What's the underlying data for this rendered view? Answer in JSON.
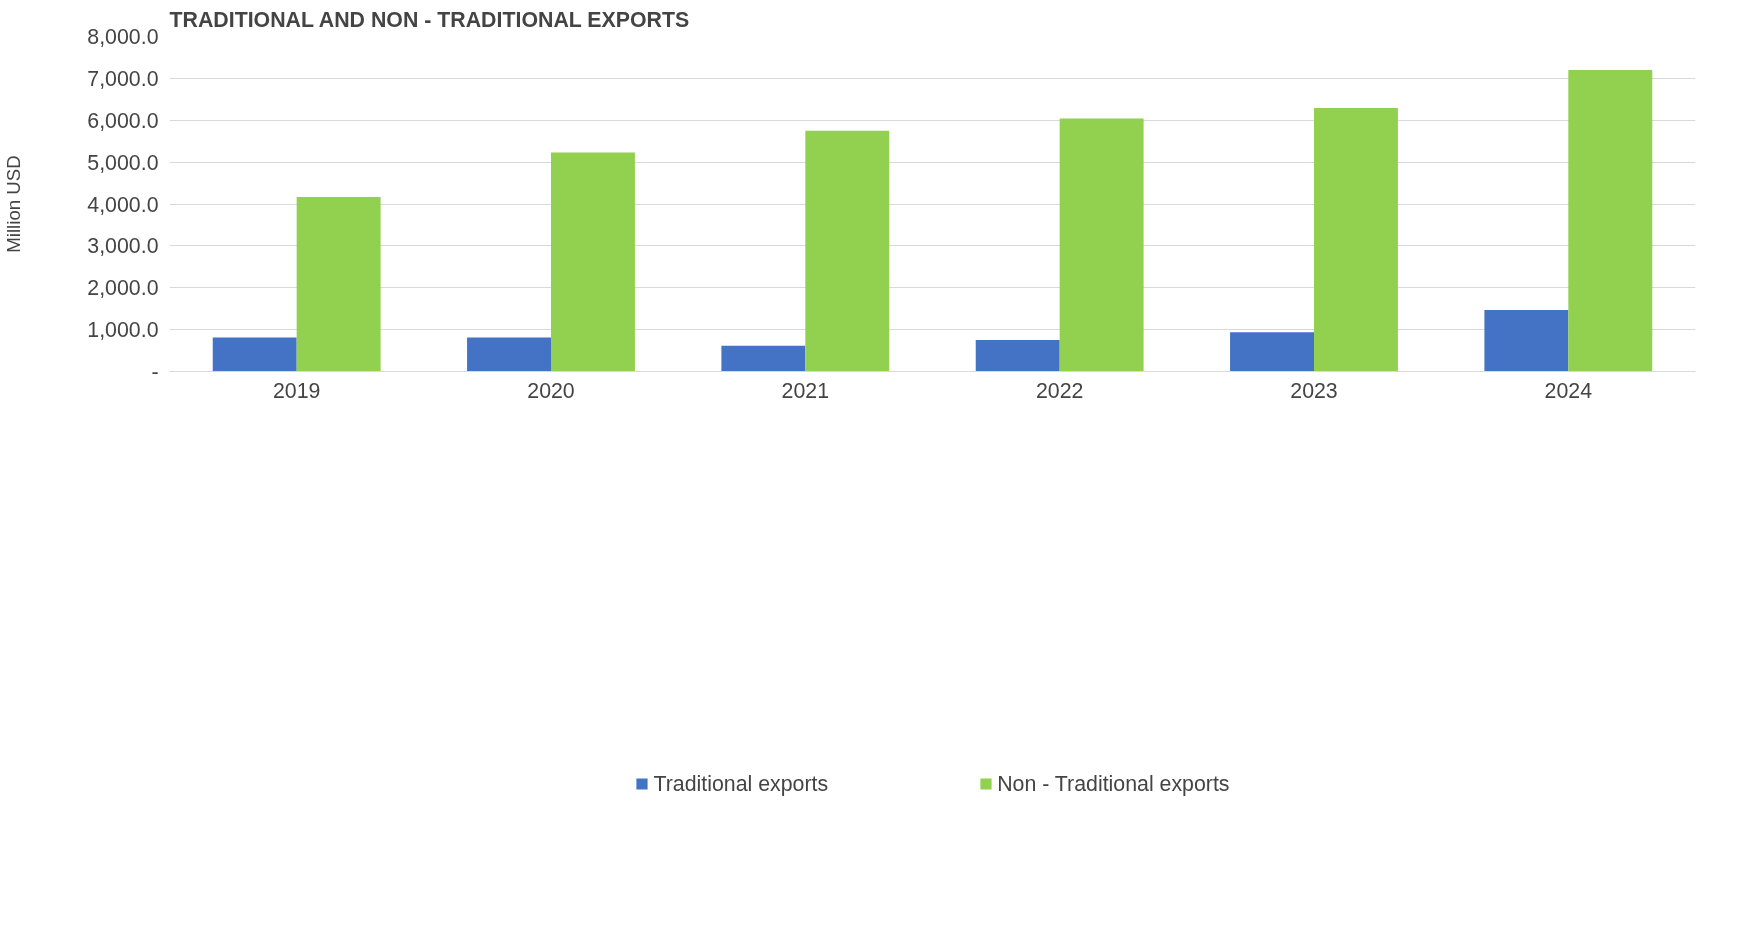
{
  "chart_data": {
    "type": "bar",
    "title": "TRADITIONAL AND NON - TRADITIONAL EXPORTS",
    "ylabel": "Million USD",
    "categories": [
      "2019",
      "2020",
      "2021",
      "2022",
      "2023",
      "2024"
    ],
    "series": [
      {
        "name": "Traditional exports",
        "color": "#4472c4",
        "values": [
          810,
          810,
          615,
          755,
          940,
          1470
        ]
      },
      {
        "name": "Non - Traditional exports",
        "color": "#92d050",
        "values": [
          4170,
          5230,
          5750,
          6040,
          6290,
          7200
        ]
      }
    ],
    "ylim": [
      0,
      8000
    ],
    "yticks": [
      {
        "value": 0,
        "label": "-"
      },
      {
        "value": 1000,
        "label": "1,000.0"
      },
      {
        "value": 2000,
        "label": "2,000.0"
      },
      {
        "value": 3000,
        "label": "3,000.0"
      },
      {
        "value": 4000,
        "label": "4,000.0"
      },
      {
        "value": 5000,
        "label": "5,000.0"
      },
      {
        "value": 6000,
        "label": "6,000.0"
      },
      {
        "value": 7000,
        "label": "7,000.0"
      },
      {
        "value": 8000,
        "label": "8,000.0"
      }
    ],
    "grid": "y",
    "legend": "bottom"
  }
}
